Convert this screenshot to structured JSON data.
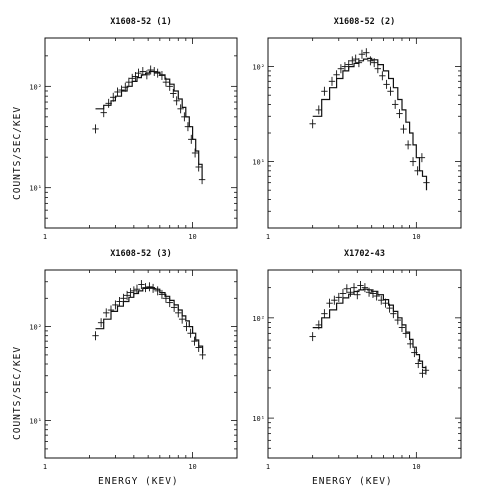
{
  "figure": {
    "ylabel": "COUNTS/SEC/KEV",
    "xlabel": "ENERGY (KEV)"
  },
  "chart_data": [
    {
      "type": "scatter",
      "title": "X1608-52   (1)",
      "xscale": "log",
      "yscale": "log",
      "xlim": [
        1,
        20
      ],
      "ylim": [
        4,
        300
      ],
      "xticks": [
        {
          "value": 1,
          "label": "1"
        },
        {
          "value": 10,
          "label": "10"
        }
      ],
      "yticks": [
        {
          "value": 10,
          "label": "10¹"
        },
        {
          "value": 100,
          "label": "10²"
        }
      ],
      "x": [
        2.2,
        2.5,
        2.7,
        2.9,
        3.1,
        3.3,
        3.5,
        3.7,
        3.9,
        4.1,
        4.3,
        4.6,
        4.9,
        5.2,
        5.5,
        5.8,
        6.2,
        6.6,
        7.0,
        7.4,
        7.8,
        8.3,
        8.8,
        9.3,
        9.8,
        10.4,
        11.0,
        11.6
      ],
      "y": [
        38,
        55,
        68,
        78,
        88,
        92,
        98,
        110,
        120,
        125,
        135,
        140,
        130,
        145,
        140,
        135,
        128,
        110,
        100,
        85,
        72,
        60,
        50,
        40,
        30,
        22,
        16,
        12
      ],
      "model_x": [
        2.2,
        2.5,
        2.8,
        3.0,
        3.3,
        3.6,
        3.9,
        4.2,
        4.5,
        4.8,
        5.1,
        5.5,
        6.0,
        6.5,
        7.0,
        7.5,
        8.0,
        8.5,
        9.0,
        9.5,
        10.0,
        10.5,
        11.0,
        11.6
      ],
      "model_y": [
        60,
        65,
        72,
        80,
        90,
        100,
        112,
        122,
        130,
        135,
        140,
        138,
        130,
        118,
        105,
        90,
        75,
        62,
        50,
        40,
        30,
        23,
        17,
        12
      ]
    },
    {
      "type": "scatter",
      "title": "X1608-52   (2)",
      "xscale": "log",
      "yscale": "log",
      "xlim": [
        1,
        20
      ],
      "ylim": [
        2,
        200
      ],
      "xticks": [
        {
          "value": 1,
          "label": "1"
        },
        {
          "value": 10,
          "label": "10"
        }
      ],
      "yticks": [
        {
          "value": 10,
          "label": "10¹"
        },
        {
          "value": 100,
          "label": "10²"
        }
      ],
      "x": [
        2.0,
        2.2,
        2.4,
        2.7,
        2.9,
        3.1,
        3.3,
        3.5,
        3.7,
        3.9,
        4.1,
        4.3,
        4.6,
        4.9,
        5.2,
        5.5,
        5.9,
        6.3,
        6.7,
        7.2,
        7.7,
        8.2,
        8.8,
        9.5,
        10.2,
        10.9,
        11.7
      ],
      "y": [
        25,
        35,
        55,
        70,
        82,
        95,
        100,
        105,
        115,
        120,
        110,
        135,
        140,
        115,
        110,
        95,
        80,
        65,
        55,
        40,
        32,
        22,
        15,
        10,
        8,
        11,
        6
      ],
      "model_x": [
        2.0,
        2.3,
        2.6,
        2.9,
        3.2,
        3.5,
        3.8,
        4.1,
        4.4,
        4.7,
        5.0,
        5.5,
        6.0,
        6.5,
        7.0,
        7.5,
        8.0,
        8.5,
        9.0,
        9.5,
        10.0,
        10.5,
        11.0,
        11.7
      ],
      "model_y": [
        30,
        45,
        60,
        75,
        90,
        100,
        108,
        115,
        120,
        122,
        118,
        105,
        90,
        75,
        60,
        45,
        35,
        26,
        20,
        15,
        11,
        8,
        7,
        5
      ]
    },
    {
      "type": "scatter",
      "title": "X1608-52   (3)",
      "xscale": "log",
      "yscale": "log",
      "xlim": [
        1,
        20
      ],
      "ylim": [
        4,
        400
      ],
      "xticks": [
        {
          "value": 1,
          "label": "1"
        },
        {
          "value": 10,
          "label": "10"
        }
      ],
      "yticks": [
        {
          "value": 10,
          "label": "10¹"
        },
        {
          "value": 100,
          "label": "10²"
        }
      ],
      "x": [
        2.2,
        2.4,
        2.6,
        2.8,
        3.0,
        3.2,
        3.4,
        3.6,
        3.8,
        4.0,
        4.2,
        4.5,
        4.8,
        5.1,
        5.4,
        5.8,
        6.2,
        6.6,
        7.0,
        7.5,
        8.0,
        8.5,
        9.1,
        9.7,
        10.3,
        11.0,
        11.7
      ],
      "y": [
        80,
        110,
        140,
        150,
        170,
        185,
        200,
        215,
        230,
        240,
        250,
        280,
        260,
        265,
        255,
        240,
        220,
        200,
        180,
        160,
        140,
        120,
        100,
        85,
        70,
        60,
        50
      ],
      "model_x": [
        2.2,
        2.5,
        2.8,
        3.1,
        3.4,
        3.7,
        4.0,
        4.3,
        4.6,
        5.0,
        5.5,
        6.0,
        6.5,
        7.0,
        7.5,
        8.0,
        8.5,
        9.0,
        9.5,
        10.0,
        10.5,
        11.0,
        11.7
      ],
      "model_y": [
        95,
        120,
        145,
        165,
        185,
        205,
        225,
        240,
        255,
        260,
        250,
        230,
        210,
        190,
        170,
        150,
        130,
        115,
        100,
        85,
        72,
        62,
        52
      ]
    },
    {
      "type": "scatter",
      "title": "X1702-43",
      "xscale": "log",
      "yscale": "log",
      "xlim": [
        1,
        20
      ],
      "ylim": [
        4,
        300
      ],
      "xticks": [
        {
          "value": 1,
          "label": "1"
        },
        {
          "value": 10,
          "label": "10"
        }
      ],
      "yticks": [
        {
          "value": 10,
          "label": "10¹"
        },
        {
          "value": 100,
          "label": "10²"
        }
      ],
      "x": [
        2.0,
        2.2,
        2.4,
        2.6,
        2.8,
        3.0,
        3.2,
        3.4,
        3.6,
        3.8,
        4.0,
        4.2,
        4.5,
        4.8,
        5.1,
        5.4,
        5.8,
        6.2,
        6.6,
        7.0,
        7.5,
        8.0,
        8.5,
        9.1,
        9.7,
        10.3,
        11.0,
        11.6
      ],
      "y": [
        65,
        85,
        110,
        140,
        150,
        160,
        175,
        195,
        180,
        200,
        170,
        210,
        200,
        180,
        175,
        165,
        150,
        140,
        125,
        110,
        95,
        80,
        70,
        55,
        45,
        35,
        28,
        30
      ],
      "model_x": [
        2.0,
        2.3,
        2.6,
        2.9,
        3.2,
        3.5,
        3.8,
        4.1,
        4.4,
        4.7,
        5.0,
        5.5,
        6.0,
        6.5,
        7.0,
        7.5,
        8.0,
        8.5,
        9.0,
        9.5,
        10.0,
        10.5,
        11.0,
        11.6
      ],
      "model_y": [
        80,
        100,
        120,
        140,
        158,
        172,
        183,
        190,
        193,
        190,
        184,
        170,
        152,
        134,
        116,
        100,
        85,
        72,
        61,
        51,
        43,
        37,
        32,
        28
      ]
    }
  ]
}
